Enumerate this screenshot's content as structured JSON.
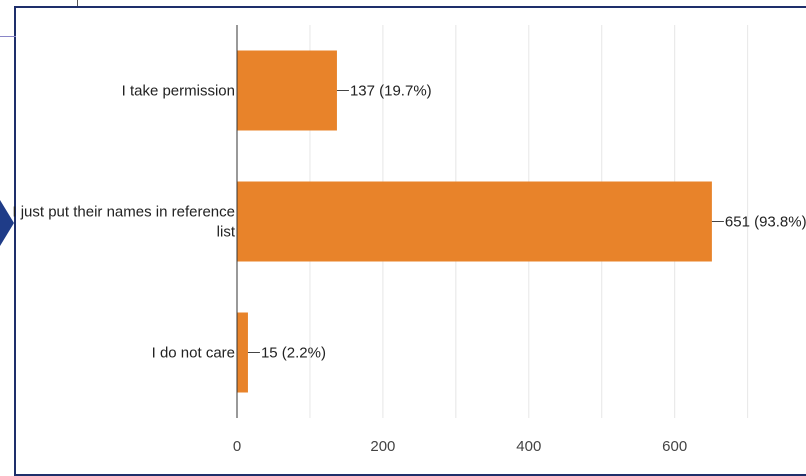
{
  "chart_data": {
    "type": "bar",
    "orientation": "horizontal",
    "categories": [
      [
        "I take permission"
      ],
      [
        "I just put their names in reference",
        "list"
      ],
      [
        "I do not care"
      ]
    ],
    "values": [
      137,
      651,
      15
    ],
    "data_labels": [
      "137 (19.7%)",
      "651 (93.8%)",
      "15 (2.2%)"
    ],
    "x_ticks": [
      0,
      200,
      400,
      600
    ],
    "xlim": [
      0,
      780
    ],
    "grid": true,
    "bar_color": "#e8832a",
    "gridline_color": "#e6e6e6",
    "axis_color": "#333333",
    "label_color": "#222222",
    "frame_color": "#1e2f6b",
    "arrow_color": "#1f3c88"
  }
}
